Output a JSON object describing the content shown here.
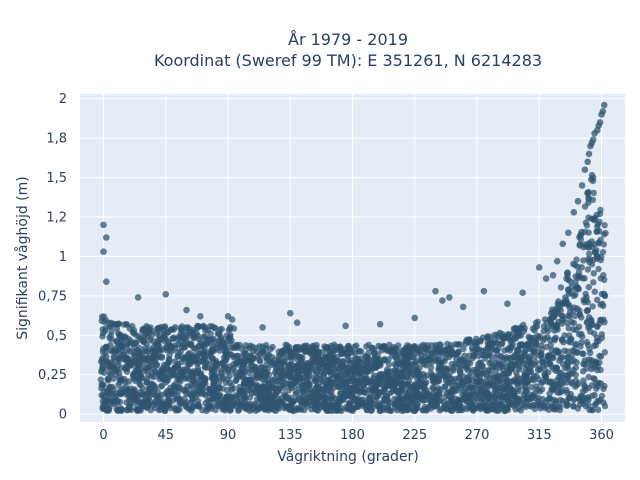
{
  "chart_data": {
    "type": "scatter",
    "title_lines": [
      "År 1979 - 2019",
      "Koordinat (Sweref 99 TM): E 351261, N 6214283"
    ],
    "xlabel": "Vågriktning (grader)",
    "ylabel": "Signifikant våghöjd (m)",
    "xlim": [
      -17,
      377
    ],
    "ylim": [
      -0.05,
      2.03
    ],
    "xticks": [
      0,
      45,
      90,
      135,
      180,
      225,
      270,
      315,
      360
    ],
    "xtick_labels": [
      "0",
      "45",
      "90",
      "135",
      "180",
      "225",
      "270",
      "315",
      "360"
    ],
    "yticks": [
      0,
      0.25,
      0.5,
      0.75,
      1,
      1.25,
      1.5,
      1.75,
      2
    ],
    "ytick_labels": [
      "0",
      "0,25",
      "0,5",
      "0,75",
      "1",
      "1,2",
      "1,5",
      "1,8",
      "2"
    ],
    "grid": true,
    "colors": {
      "marker": "#2f5570",
      "plot_bg": "#e5ecf6",
      "grid": "#ffffff",
      "text": "#2a3f5f"
    },
    "x": [
      0,
      2,
      0,
      2,
      45,
      25,
      60,
      70,
      90,
      93,
      115,
      135,
      140,
      175,
      200,
      225,
      240,
      245,
      250,
      260,
      275,
      292,
      303,
      315,
      320,
      325,
      328,
      332,
      336,
      340,
      343,
      346,
      348,
      350,
      351,
      352,
      353,
      354,
      355,
      357,
      358,
      359,
      360,
      361,
      362
    ],
    "y": [
      1.2,
      1.12,
      1.03,
      0.84,
      0.76,
      0.74,
      0.66,
      0.62,
      0.62,
      0.6,
      0.55,
      0.64,
      0.58,
      0.56,
      0.57,
      0.61,
      0.78,
      0.72,
      0.74,
      0.68,
      0.78,
      0.7,
      0.77,
      0.93,
      0.86,
      0.88,
      0.97,
      1.08,
      1.15,
      1.28,
      1.35,
      1.45,
      1.55,
      1.6,
      1.65,
      1.7,
      1.72,
      1.74,
      1.78,
      1.8,
      1.83,
      1.85,
      1.9,
      1.92,
      1.96
    ]
  }
}
